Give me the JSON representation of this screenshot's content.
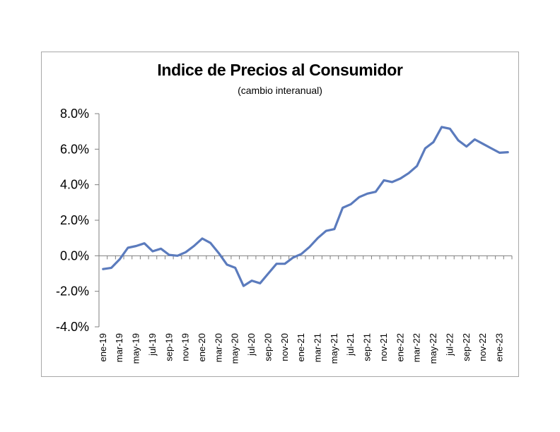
{
  "chart_data": {
    "type": "line",
    "title": "Indice de Precios al Consumidor",
    "subtitle": "(cambio interanual)",
    "xlabel": "",
    "ylabel": "",
    "ylim": [
      -4.0,
      8.0
    ],
    "yticks": [
      "8.0%",
      "6.0%",
      "4.0%",
      "2.0%",
      "0.0%",
      "-2.0%",
      "-4.0%"
    ],
    "ytick_values": [
      8,
      6,
      4,
      2,
      0,
      -2,
      -4
    ],
    "xtick_labels": [
      "ene-19",
      "mar-19",
      "may-19",
      "jul-19",
      "sep-19",
      "nov-19",
      "ene-20",
      "mar-20",
      "may-20",
      "jul-20",
      "sep-20",
      "nov-20",
      "ene-21",
      "mar-21",
      "may-21",
      "jul-21",
      "sep-21",
      "nov-21",
      "ene-22",
      "mar-22",
      "may-22",
      "jul-22",
      "sep-22",
      "nov-22",
      "ene-23"
    ],
    "grid": false,
    "legend": "none",
    "line_color": "#5b7bbd",
    "series": [
      {
        "values": [
          -0.75,
          -0.68,
          -0.2,
          0.45,
          0.55,
          0.7,
          0.25,
          0.4,
          0.05,
          0.0,
          0.2,
          0.55,
          0.97,
          0.72,
          0.15,
          -0.5,
          -0.68,
          -1.7,
          -1.4,
          -1.55,
          -1.0,
          -0.45,
          -0.45,
          -0.1,
          0.1,
          0.5,
          1.0,
          1.4,
          1.5,
          2.7,
          2.9,
          3.3,
          3.5,
          3.6,
          4.25,
          4.15,
          4.35,
          4.65,
          5.05,
          6.05,
          6.4,
          7.25,
          7.15,
          6.5,
          6.15,
          6.55,
          6.3,
          6.05,
          5.8,
          5.83
        ]
      }
    ]
  }
}
